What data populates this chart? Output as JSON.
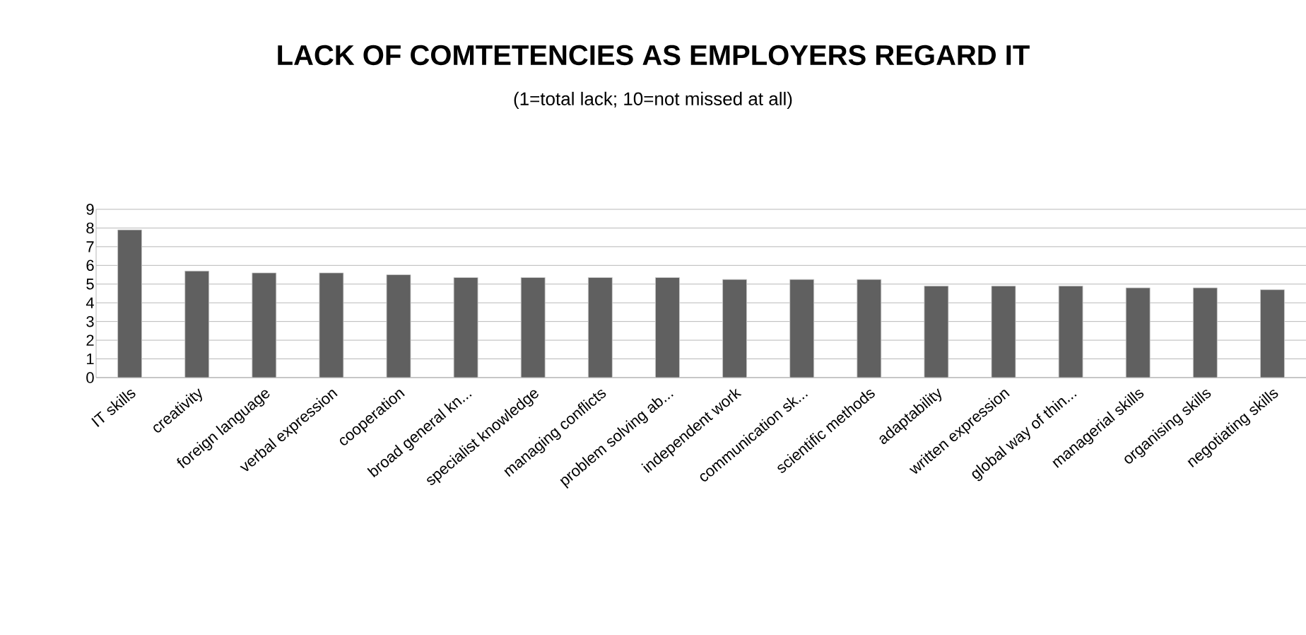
{
  "chart_data": {
    "type": "bar",
    "title": "LACK OF COMTETENCIES AS EMPLOYERS REGARD IT",
    "subtitle": "(1=total lack; 10=not missed at all)",
    "categories": [
      "IT skills",
      "creativity",
      "foreign language",
      "verbal expression",
      "cooperation",
      "broad general kn...",
      "specialist knowledge",
      "managing conflicts",
      "problem solving ab...",
      "independent work",
      "communication sk...",
      "scientific methods",
      "adaptability",
      "written expression",
      "global way of thin...",
      "managerial skills",
      "organising skills",
      "negotiating skills"
    ],
    "values": [
      7.9,
      5.7,
      5.6,
      5.6,
      5.5,
      5.35,
      5.35,
      5.35,
      5.35,
      5.25,
      5.25,
      5.25,
      4.9,
      4.9,
      4.9,
      4.8,
      4.8,
      4.7
    ],
    "color": "#606060",
    "ylim": [
      0,
      9
    ],
    "yticks": [
      0,
      1,
      2,
      3,
      4,
      5,
      6,
      7,
      8,
      9
    ],
    "grid": "y"
  }
}
